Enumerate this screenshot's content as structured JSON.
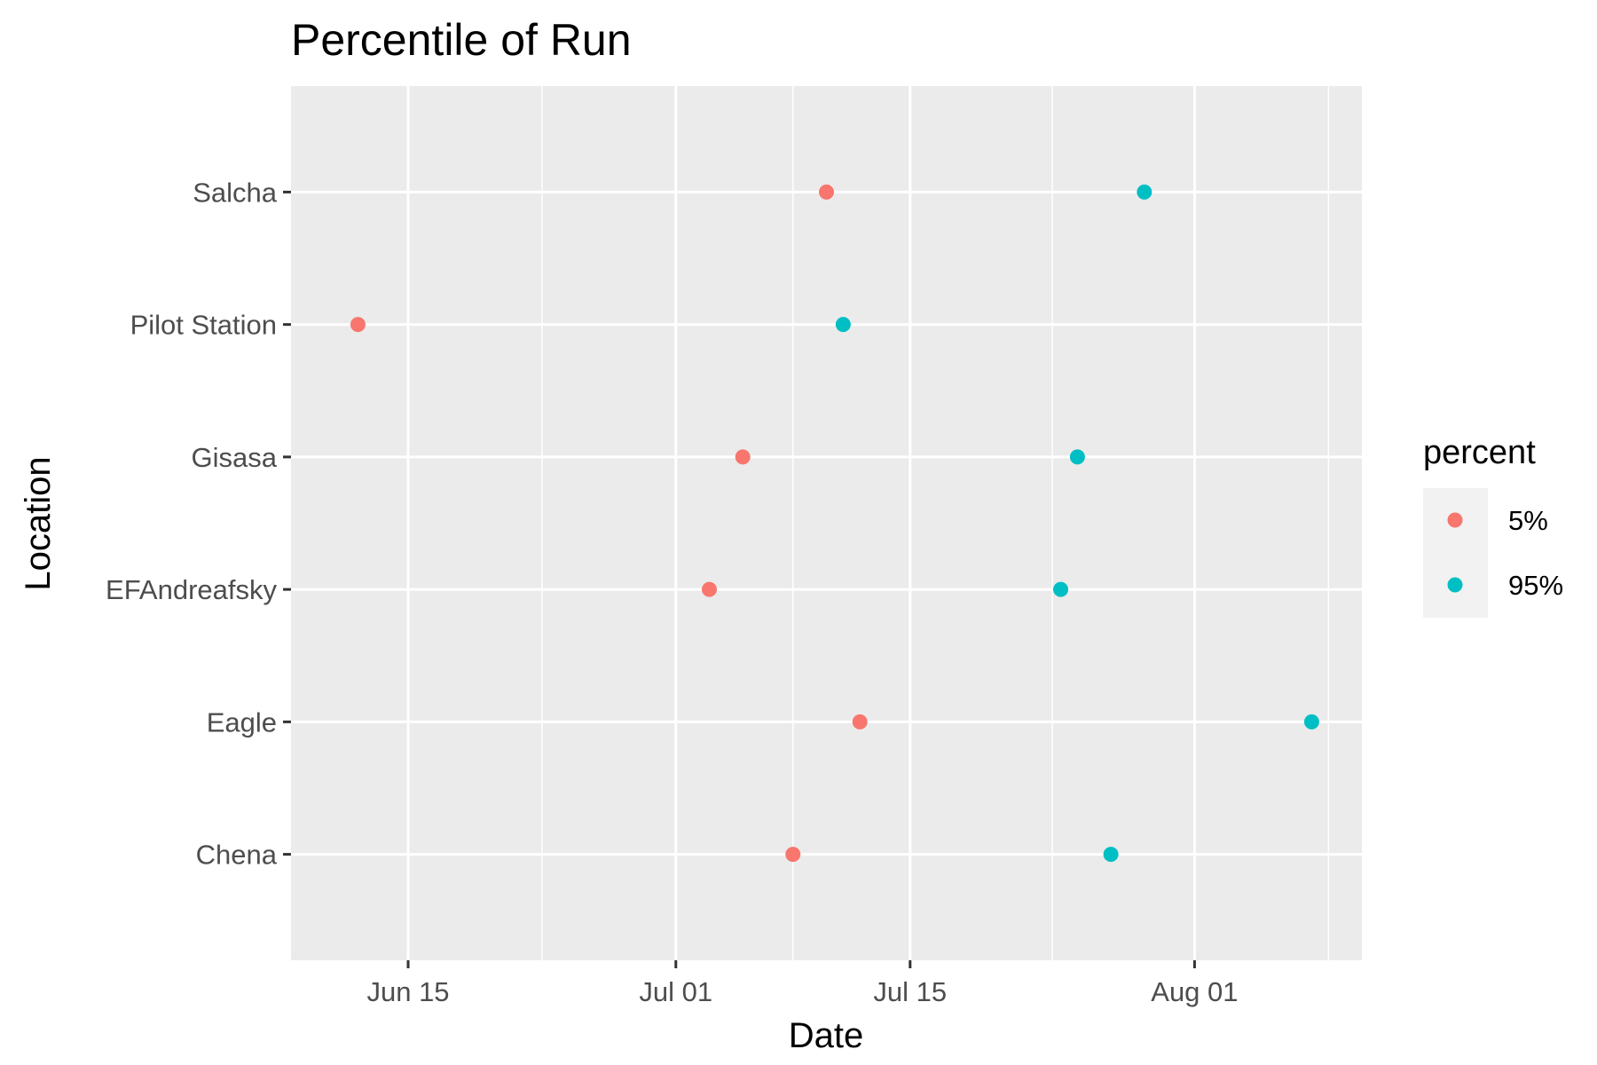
{
  "chart_data": {
    "type": "scatter",
    "title": "Percentile of Run",
    "xlabel": "Date",
    "ylabel": "Location",
    "x_scale": "date",
    "xlim": [
      "2021-06-08",
      "2021-08-11"
    ],
    "x_ticks": [
      {
        "date": "2021-06-15",
        "label": "Jun 15"
      },
      {
        "date": "2021-07-01",
        "label": "Jul 01"
      },
      {
        "date": "2021-07-15",
        "label": "Jul 15"
      },
      {
        "date": "2021-08-01",
        "label": "Aug 01"
      }
    ],
    "categories": [
      "Salcha",
      "Pilot Station",
      "Gisasa",
      "EFAndreafsky",
      "Eagle",
      "Chena"
    ],
    "grid": true,
    "legend": {
      "title": "percent",
      "position": "right"
    },
    "series": [
      {
        "name": "5%",
        "color": "#F8766D",
        "points": [
          {
            "location": "Salcha",
            "date": "2021-07-10"
          },
          {
            "location": "Pilot Station",
            "date": "2021-06-12"
          },
          {
            "location": "Gisasa",
            "date": "2021-07-05"
          },
          {
            "location": "EFAndreafsky",
            "date": "2021-07-03"
          },
          {
            "location": "Eagle",
            "date": "2021-07-12"
          },
          {
            "location": "Chena",
            "date": "2021-07-08"
          }
        ]
      },
      {
        "name": "95%",
        "color": "#00BFC4",
        "points": [
          {
            "location": "Salcha",
            "date": "2021-07-29"
          },
          {
            "location": "Pilot Station",
            "date": "2021-07-11"
          },
          {
            "location": "Gisasa",
            "date": "2021-07-25"
          },
          {
            "location": "EFAndreafsky",
            "date": "2021-07-24"
          },
          {
            "location": "Eagle",
            "date": "2021-08-08"
          },
          {
            "location": "Chena",
            "date": "2021-07-27"
          }
        ]
      }
    ]
  }
}
